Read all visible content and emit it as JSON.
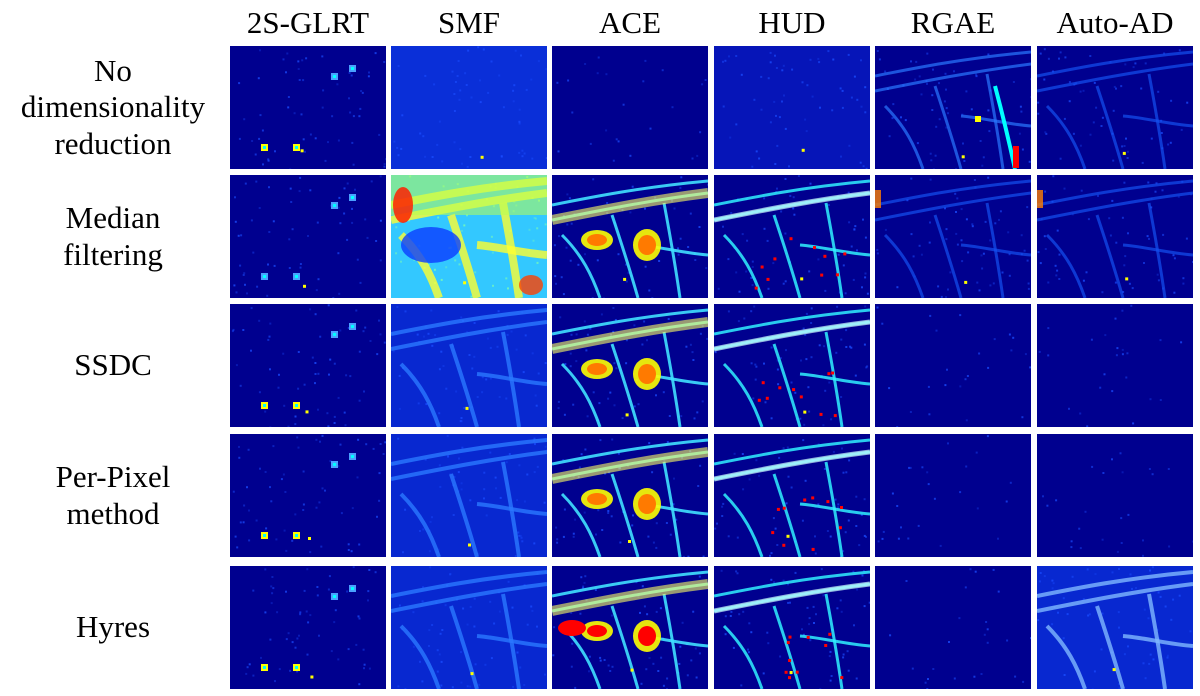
{
  "columns": [
    {
      "label": "2S-GLRT",
      "key": "glrt"
    },
    {
      "label": "SMF",
      "key": "smf"
    },
    {
      "label": "ACE",
      "key": "ace"
    },
    {
      "label": "HUD",
      "key": "hud"
    },
    {
      "label": "RGAE",
      "key": "rgae"
    },
    {
      "label": "Auto-AD",
      "key": "autoad"
    }
  ],
  "rows": [
    {
      "key": "none",
      "lines": [
        "No",
        "dimensionality",
        "reduction"
      ]
    },
    {
      "key": "median",
      "lines": [
        "Median",
        "filtering"
      ]
    },
    {
      "key": "ssdc",
      "lines": [
        "SSDC"
      ]
    },
    {
      "key": "perpixel",
      "lines": [
        "Per-Pixel",
        "method"
      ]
    },
    {
      "key": "hyres",
      "lines": [
        "Hyres"
      ]
    }
  ],
  "colormap": "jet",
  "colors": {
    "background_low": "#00008f",
    "mid_blue": "#0030ff",
    "cyan": "#00ffff",
    "yellow": "#ffff00",
    "red": "#ff0000"
  },
  "tiles": {
    "none": {
      "glrt": "sparse-targets",
      "smf": "uniform-blue",
      "ace": "dark-uniform",
      "hud": "blue-faint",
      "rgae": "structures-bright",
      "autoad": "structures-faint"
    },
    "median": {
      "glrt": "sparse-targets-faint",
      "smf": "hot-full",
      "ace": "structures-hot",
      "hud": "structures-cyan",
      "rgae": "faint-structure",
      "autoad": "faint-structure"
    },
    "ssdc": {
      "glrt": "sparse-targets",
      "smf": "structures-blue",
      "ace": "structures-hot",
      "hud": "structures-cyan",
      "rgae": "dark-uniform",
      "autoad": "dark-uniform"
    },
    "perpixel": {
      "glrt": "sparse-targets",
      "smf": "structures-blue",
      "ace": "structures-hot",
      "hud": "structures-cyan",
      "rgae": "dark-uniform",
      "autoad": "dark-uniform"
    },
    "hyres": {
      "glrt": "sparse-targets",
      "smf": "structures-blue",
      "ace": "structures-hot-red",
      "hud": "structures-cyan",
      "rgae": "dark-uniform",
      "autoad": "structures-light"
    }
  }
}
